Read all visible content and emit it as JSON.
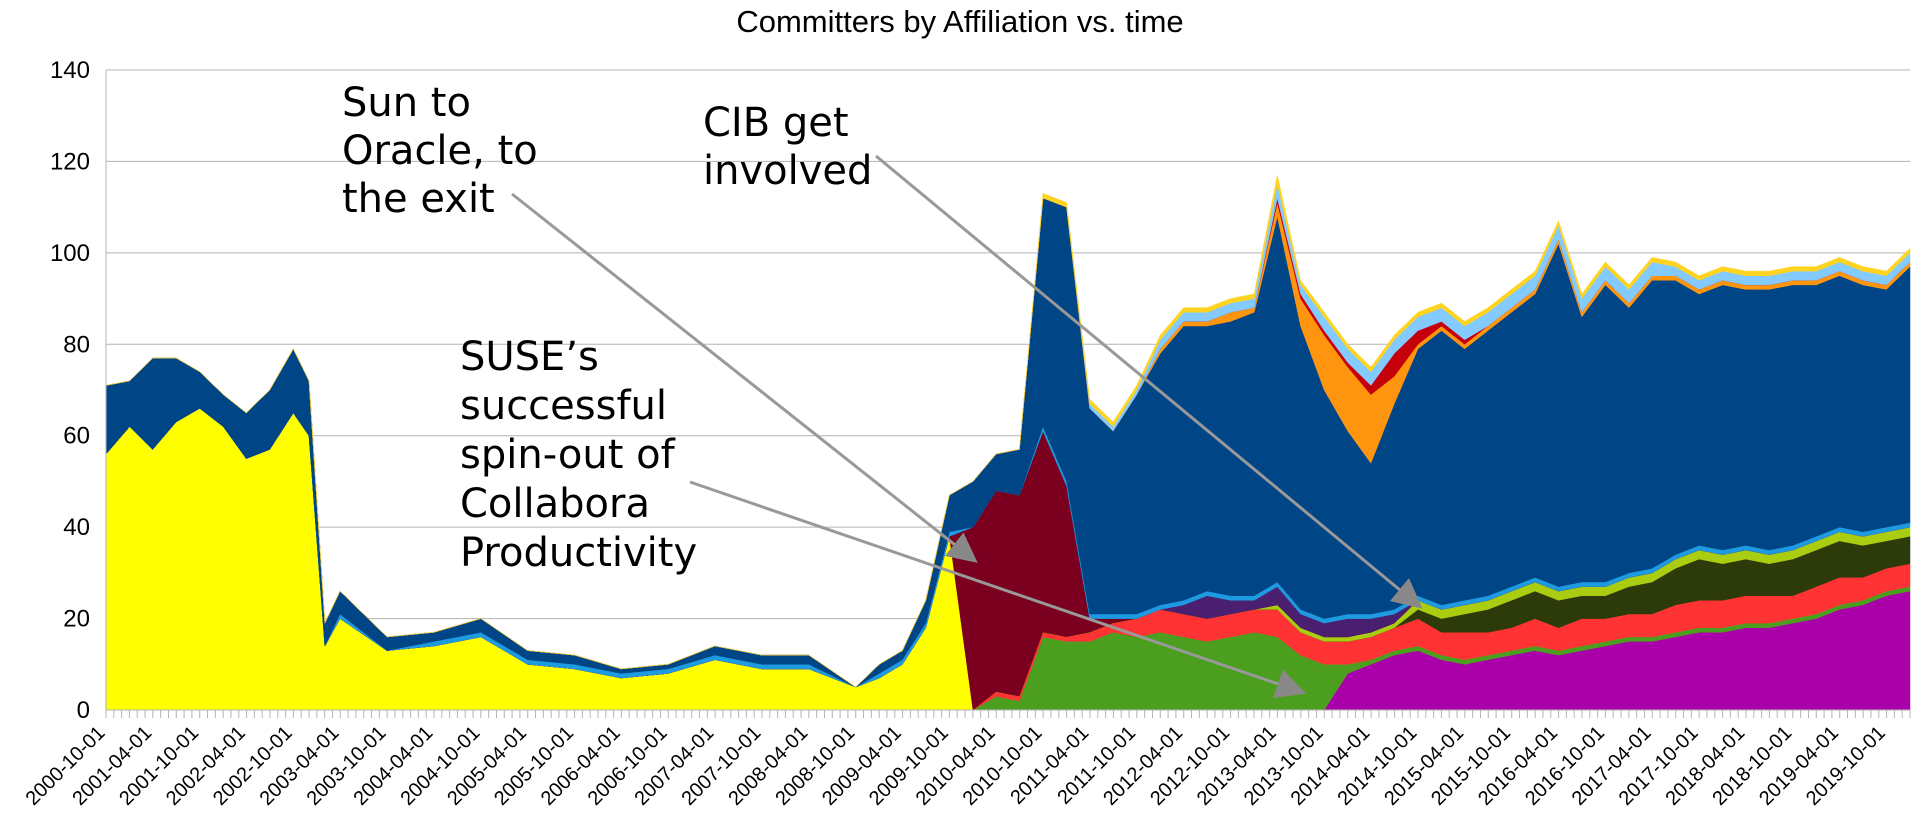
{
  "chart_data": {
    "type": "area",
    "stacked": true,
    "title": "Committers by Affiliation vs. time",
    "xlabel": "",
    "ylabel": "",
    "ylim": [
      0,
      140
    ],
    "yticks": [
      0,
      20,
      40,
      60,
      80,
      100,
      120,
      140
    ],
    "grid": true,
    "legend": "none",
    "xticks": [
      "2000-10-01",
      "2001-04-01",
      "2001-10-01",
      "2002-04-01",
      "2002-10-01",
      "2003-04-01",
      "2003-10-01",
      "2004-04-01",
      "2004-10-01",
      "2005-04-01",
      "2005-10-01",
      "2006-04-01",
      "2006-10-01",
      "2007-04-01",
      "2007-10-01",
      "2008-04-01",
      "2008-10-01",
      "2009-04-01",
      "2009-10-01",
      "2010-04-01",
      "2010-10-01",
      "2011-04-01",
      "2011-10-01",
      "2012-04-01",
      "2012-10-01",
      "2013-04-01",
      "2013-10-01",
      "2014-04-01",
      "2014-10-01",
      "2015-04-01",
      "2015-10-01",
      "2016-04-01",
      "2016-10-01",
      "2017-04-01",
      "2017-10-01",
      "2018-04-01",
      "2018-10-01",
      "2019-04-01",
      "2019-10-01"
    ],
    "keyframes": {
      "x": [
        "2000-10-01",
        "2001-01-01",
        "2001-04-01",
        "2001-07-01",
        "2001-10-01",
        "2002-01-01",
        "2002-04-01",
        "2002-07-01",
        "2002-10-01",
        "2002-12-01",
        "2003-02-01",
        "2003-04-01",
        "2003-10-01",
        "2004-04-01",
        "2004-10-01",
        "2005-04-01",
        "2005-10-01",
        "2006-04-01",
        "2006-10-01",
        "2007-04-01",
        "2007-10-01",
        "2008-04-01",
        "2008-10-01",
        "2009-01-01",
        "2009-04-01",
        "2009-07-01",
        "2009-10-01",
        "2010-01-01",
        "2010-04-01",
        "2010-07-01",
        "2010-10-01",
        "2011-01-01",
        "2011-04-01",
        "2011-07-01",
        "2011-10-01",
        "2012-01-01",
        "2012-04-01",
        "2012-07-01",
        "2012-10-01",
        "2013-01-01",
        "2013-04-01",
        "2013-07-01",
        "2013-10-01",
        "2014-01-01",
        "2014-04-01",
        "2014-07-01",
        "2014-10-01",
        "2015-01-01",
        "2015-04-01",
        "2015-07-01",
        "2015-10-01",
        "2016-01-01",
        "2016-04-01",
        "2016-07-01",
        "2016-10-01",
        "2017-01-01",
        "2017-04-01",
        "2017-07-01",
        "2017-10-01",
        "2018-01-01",
        "2018-04-01",
        "2018-07-01",
        "2018-10-01",
        "2019-01-01",
        "2019-04-01",
        "2019-07-01",
        "2019-10-01",
        "2020-01-01"
      ],
      "series": [
        {
          "color": "#aa00aa",
          "values": [
            0,
            0,
            0,
            0,
            0,
            0,
            0,
            0,
            0,
            0,
            0,
            0,
            0,
            0,
            0,
            0,
            0,
            0,
            0,
            0,
            0,
            0,
            0,
            0,
            0,
            0,
            0,
            0,
            0,
            0,
            0,
            0,
            0,
            0,
            0,
            0,
            0,
            0,
            0,
            0,
            0,
            0,
            0,
            8,
            10,
            12,
            13,
            11,
            10,
            11,
            12,
            13,
            12,
            13,
            14,
            15,
            15,
            16,
            17,
            17,
            18,
            18,
            19,
            20,
            22,
            23,
            25,
            26
          ]
        },
        {
          "color": "#4c9f1e",
          "values": [
            0,
            0,
            0,
            0,
            0,
            0,
            0,
            0,
            0,
            0,
            0,
            0,
            0,
            0,
            0,
            0,
            0,
            0,
            0,
            0,
            0,
            0,
            0,
            0,
            0,
            0,
            0,
            0,
            3,
            2,
            16,
            15,
            15,
            17,
            16,
            17,
            16,
            15,
            16,
            17,
            16,
            12,
            10,
            2,
            1,
            1,
            1,
            1,
            1,
            1,
            1,
            1,
            1,
            1,
            1,
            1,
            1,
            1,
            1,
            1,
            1,
            1,
            1,
            1,
            1,
            1,
            1,
            1
          ]
        },
        {
          "color": "#ff3333",
          "values": [
            0,
            0,
            0,
            0,
            0,
            0,
            0,
            0,
            0,
            0,
            0,
            0,
            0,
            0,
            0,
            0,
            0,
            0,
            0,
            0,
            0,
            0,
            0,
            0,
            0,
            0,
            0,
            0,
            1,
            1,
            1,
            1,
            2,
            2,
            4,
            5,
            5,
            5,
            5,
            5,
            6,
            5,
            5,
            5,
            5,
            5,
            6,
            5,
            6,
            5,
            5,
            6,
            5,
            6,
            5,
            5,
            5,
            6,
            6,
            6,
            6,
            6,
            5,
            6,
            6,
            5,
            5,
            5
          ]
        },
        {
          "color": "#2d3a0a",
          "values": [
            0,
            0,
            0,
            0,
            0,
            0,
            0,
            0,
            0,
            0,
            0,
            0,
            0,
            0,
            0,
            0,
            0,
            0,
            0,
            0,
            0,
            0,
            0,
            0,
            0,
            0,
            0,
            0,
            0,
            0,
            0,
            0,
            0,
            0,
            0,
            0,
            0,
            0,
            0,
            0,
            0,
            0,
            0,
            0,
            0,
            0,
            2,
            3,
            4,
            5,
            6,
            6,
            6,
            5,
            5,
            6,
            7,
            8,
            9,
            8,
            8,
            7,
            8,
            8,
            8,
            7,
            6,
            6
          ]
        },
        {
          "color": "#aacc11",
          "values": [
            0,
            0,
            0,
            0,
            0,
            0,
            0,
            0,
            0,
            0,
            0,
            0,
            0,
            0,
            0,
            0,
            0,
            0,
            0,
            0,
            0,
            0,
            0,
            0,
            0,
            0,
            0,
            0,
            0,
            0,
            0,
            0,
            0,
            0,
            0,
            0,
            0,
            0,
            0,
            0,
            1,
            1,
            1,
            1,
            1,
            1,
            2,
            2,
            2,
            2,
            2,
            2,
            2,
            2,
            2,
            2,
            2,
            2,
            2,
            2,
            2,
            2,
            2,
            2,
            2,
            2,
            2,
            2
          ]
        },
        {
          "color": "#ffff00",
          "values": [
            56,
            62,
            57,
            63,
            66,
            62,
            55,
            57,
            65,
            60,
            14,
            20,
            13,
            14,
            16,
            10,
            9,
            7,
            8,
            11,
            9,
            9,
            5,
            7,
            10,
            18,
            38,
            0,
            0,
            0,
            0,
            0,
            0,
            0,
            0,
            0,
            0,
            0,
            0,
            0,
            0,
            0,
            0,
            0,
            0,
            0,
            0,
            0,
            0,
            0,
            0,
            0,
            0,
            0,
            0,
            0,
            0,
            0,
            0,
            0,
            0,
            0,
            0,
            0,
            0,
            0,
            0,
            0
          ]
        },
        {
          "color": "#7b0020",
          "values": [
            0,
            0,
            0,
            0,
            0,
            0,
            0,
            0,
            0,
            0,
            0,
            0,
            0,
            0,
            0,
            0,
            0,
            0,
            0,
            0,
            0,
            0,
            0,
            0,
            0,
            0,
            0,
            40,
            44,
            44,
            44,
            33,
            3,
            1,
            0,
            0,
            0,
            0,
            0,
            0,
            0,
            0,
            0,
            0,
            0,
            0,
            0,
            0,
            0,
            0,
            0,
            0,
            0,
            0,
            0,
            0,
            0,
            0,
            0,
            0,
            0,
            0,
            0,
            0,
            0,
            0,
            0,
            0
          ]
        },
        {
          "color": "#4b1f6f",
          "values": [
            0,
            0,
            0,
            0,
            0,
            0,
            0,
            0,
            0,
            0,
            0,
            0,
            0,
            0,
            0,
            0,
            0,
            0,
            0,
            0,
            0,
            0,
            0,
            0,
            0,
            0,
            0,
            0,
            0,
            0,
            0,
            0,
            0,
            0,
            0,
            0,
            2,
            5,
            3,
            2,
            4,
            3,
            3,
            4,
            3,
            2,
            0,
            0,
            0,
            0,
            0,
            0,
            0,
            0,
            0,
            0,
            0,
            0,
            0,
            0,
            0,
            0,
            0,
            0,
            0,
            0,
            0,
            0
          ]
        },
        {
          "color": "#1e9ae0",
          "values": [
            0,
            0,
            0,
            0,
            0,
            0,
            0,
            0,
            0,
            0,
            0,
            1,
            0,
            1,
            1,
            1,
            1,
            1,
            1,
            1,
            1,
            1,
            0,
            1,
            1,
            1,
            1,
            0,
            0,
            0,
            1,
            1,
            1,
            1,
            1,
            1,
            1,
            1,
            1,
            1,
            1,
            1,
            1,
            1,
            1,
            1,
            1,
            1,
            1,
            1,
            1,
            1,
            1,
            1,
            1,
            1,
            1,
            1,
            1,
            1,
            1,
            1,
            1,
            1,
            1,
            1,
            1,
            1
          ]
        },
        {
          "color": "#004586",
          "values": [
            15,
            10,
            20,
            14,
            8,
            7,
            10,
            13,
            14,
            12,
            5,
            5,
            3,
            2,
            3,
            2,
            2,
            1,
            1,
            2,
            2,
            2,
            0,
            2,
            2,
            5,
            8,
            10,
            8,
            10,
            50,
            60,
            45,
            40,
            48,
            55,
            60,
            58,
            60,
            62,
            80,
            62,
            50,
            40,
            33,
            45,
            54,
            60,
            55,
            58,
            60,
            62,
            75,
            58,
            65,
            58,
            63,
            60,
            55,
            58,
            56,
            57,
            57,
            55,
            55,
            54,
            52,
            56
          ]
        },
        {
          "color": "#ff950e",
          "values": [
            0,
            0,
            0,
            0,
            0,
            0,
            0,
            0,
            0,
            0,
            0,
            0,
            0,
            0,
            0,
            0,
            0,
            0,
            0,
            0,
            0,
            0,
            0,
            0,
            0,
            0,
            0,
            0,
            0,
            0,
            0,
            0,
            0,
            0,
            0,
            1,
            1,
            1,
            2,
            1,
            3,
            6,
            12,
            14,
            15,
            6,
            1,
            1,
            1,
            1,
            1,
            1,
            1,
            1,
            1,
            1,
            1,
            1,
            1,
            1,
            1,
            1,
            1,
            1,
            1,
            1,
            1,
            1
          ]
        },
        {
          "color": "#c5000b",
          "values": [
            0,
            0,
            0,
            0,
            0,
            0,
            0,
            0,
            0,
            0,
            0,
            0,
            0,
            0,
            0,
            0,
            0,
            0,
            0,
            0,
            0,
            0,
            0,
            0,
            0,
            0,
            0,
            0,
            0,
            0,
            0,
            0,
            0,
            0,
            0,
            0,
            0,
            0,
            0,
            0,
            1,
            1,
            1,
            1,
            2,
            5,
            3,
            1,
            1,
            0,
            0,
            0,
            0,
            0,
            0,
            0,
            0,
            0,
            0,
            0,
            0,
            0,
            0,
            0,
            0,
            0,
            0,
            0
          ]
        },
        {
          "color": "#83caff",
          "values": [
            0,
            0,
            0,
            0,
            0,
            0,
            0,
            0,
            0,
            0,
            0,
            0,
            0,
            0,
            0,
            0,
            0,
            0,
            0,
            0,
            0,
            0,
            0,
            0,
            0,
            0,
            0,
            0,
            0,
            0,
            0,
            0,
            1,
            1,
            1,
            2,
            2,
            2,
            2,
            2,
            3,
            2,
            3,
            3,
            3,
            3,
            3,
            3,
            3,
            3,
            3,
            3,
            3,
            3,
            3,
            3,
            3,
            2,
            2,
            2,
            2,
            2,
            2,
            2,
            2,
            2,
            2,
            2
          ]
        },
        {
          "color": "#ffd320",
          "values": [
            0,
            0,
            0,
            0,
            0,
            0,
            0,
            0,
            0,
            0,
            0,
            0,
            0,
            0,
            0,
            0,
            0,
            0,
            0,
            0,
            0,
            0,
            0,
            0,
            0,
            0,
            0,
            0,
            0,
            0,
            1,
            1,
            1,
            1,
            1,
            1,
            1,
            1,
            1,
            1,
            2,
            1,
            1,
            1,
            1,
            1,
            1,
            1,
            1,
            1,
            1,
            1,
            1,
            1,
            1,
            1,
            1,
            1,
            1,
            1,
            1,
            1,
            1,
            1,
            1,
            1,
            1,
            1
          ]
        }
      ]
    },
    "annotations": [
      {
        "lines": [
          "Sun to",
          "Oracle, to",
          "the exit"
        ],
        "arrow_to": {
          "x": "2010-01-01",
          "y": 33
        }
      },
      {
        "lines": [
          "CIB get",
          "involved"
        ],
        "arrow_to": {
          "x": "2014-10-01",
          "y": 23
        }
      },
      {
        "lines": [
          "SUSE’s",
          "successful",
          "spin-out of",
          "Collabora",
          "Productivity"
        ],
        "arrow_to": {
          "x": "2013-07-01",
          "y": 4
        }
      }
    ]
  }
}
